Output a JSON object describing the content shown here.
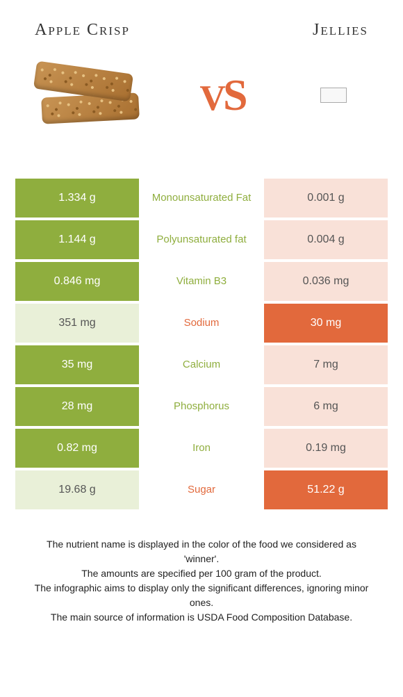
{
  "titles": {
    "left": "Apple Crisp",
    "right": "Jellies"
  },
  "vs": {
    "v": "V",
    "s": "S"
  },
  "colors": {
    "green": "#8fae3e",
    "orange": "#e2693c",
    "green_fade": "#e9f0d8",
    "orange_fade": "#f9e1d8"
  },
  "rows": [
    {
      "left": "1.334 g",
      "label": "Monounsaturated Fat",
      "right": "0.001 g",
      "winner": "left"
    },
    {
      "left": "1.144 g",
      "label": "Polyunsaturated fat",
      "right": "0.004 g",
      "winner": "left"
    },
    {
      "left": "0.846 mg",
      "label": "Vitamin B3",
      "right": "0.036 mg",
      "winner": "left"
    },
    {
      "left": "351 mg",
      "label": "Sodium",
      "right": "30 mg",
      "winner": "right"
    },
    {
      "left": "35 mg",
      "label": "Calcium",
      "right": "7 mg",
      "winner": "left"
    },
    {
      "left": "28 mg",
      "label": "Phosphorus",
      "right": "6 mg",
      "winner": "left"
    },
    {
      "left": "0.82 mg",
      "label": "Iron",
      "right": "0.19 mg",
      "winner": "left"
    },
    {
      "left": "19.68 g",
      "label": "Sugar",
      "right": "51.22 g",
      "winner": "right"
    }
  ],
  "footnotes": [
    "The nutrient name is displayed in the color of the food we considered as 'winner'.",
    "The amounts are specified per 100 gram of the product.",
    "The infographic aims to display only the significant differences, ignoring minor ones.",
    "The main source of information is USDA Food Composition Database."
  ]
}
